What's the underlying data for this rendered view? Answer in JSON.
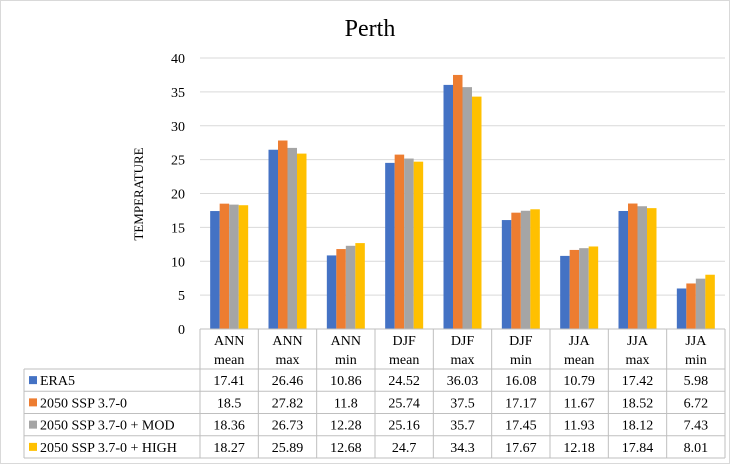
{
  "chart_data": {
    "type": "bar",
    "title": "Perth",
    "ylabel": "TEMPERATURE",
    "xlabel": "",
    "ylim": [
      0,
      40
    ],
    "yticks": [
      0,
      5,
      10,
      15,
      20,
      25,
      30,
      35,
      40
    ],
    "categories": [
      [
        "ANN",
        "mean"
      ],
      [
        "ANN",
        "max"
      ],
      [
        "ANN",
        "min"
      ],
      [
        "DJF",
        "mean"
      ],
      [
        "DJF",
        "max"
      ],
      [
        "DJF",
        "min"
      ],
      [
        "JJA",
        "mean"
      ],
      [
        "JJA",
        "max"
      ],
      [
        "JJA",
        "min"
      ]
    ],
    "series": [
      {
        "name": "ERA5",
        "color": "#4472C4",
        "values": [
          17.41,
          26.46,
          10.86,
          24.52,
          36.03,
          16.08,
          10.79,
          17.42,
          5.98
        ],
        "labels": [
          "17.41",
          "26.46",
          "10.86",
          "24.52",
          "36.03",
          "16.08",
          "10.79",
          "17.42",
          "5.98"
        ]
      },
      {
        "name": "2050 SSP 3.7-0",
        "color": "#ED7D31",
        "values": [
          18.5,
          27.82,
          11.8,
          25.74,
          37.5,
          17.17,
          11.67,
          18.52,
          6.72
        ],
        "labels": [
          "18.5",
          "27.82",
          "11.8",
          "25.74",
          "37.5",
          "17.17",
          "11.67",
          "18.52",
          "6.72"
        ]
      },
      {
        "name": "2050 SSP 3.7-0 + MOD",
        "color": "#A5A5A5",
        "values": [
          18.36,
          26.73,
          12.28,
          25.16,
          35.7,
          17.45,
          11.93,
          18.12,
          7.43
        ],
        "labels": [
          "18.36",
          "26.73",
          "12.28",
          "25.16",
          "35.7",
          "17.45",
          "11.93",
          "18.12",
          "7.43"
        ]
      },
      {
        "name": "2050 SSP 3.7-0 + HIGH",
        "color": "#FFC000",
        "values": [
          18.27,
          25.89,
          12.68,
          24.7,
          34.3,
          17.67,
          12.18,
          17.84,
          8.01
        ],
        "labels": [
          "18.27",
          "25.89",
          "12.68",
          "24.7",
          "34.3",
          "17.67",
          "12.18",
          "17.84",
          "8.01"
        ]
      }
    ],
    "grid": true,
    "legend": "data-table"
  }
}
